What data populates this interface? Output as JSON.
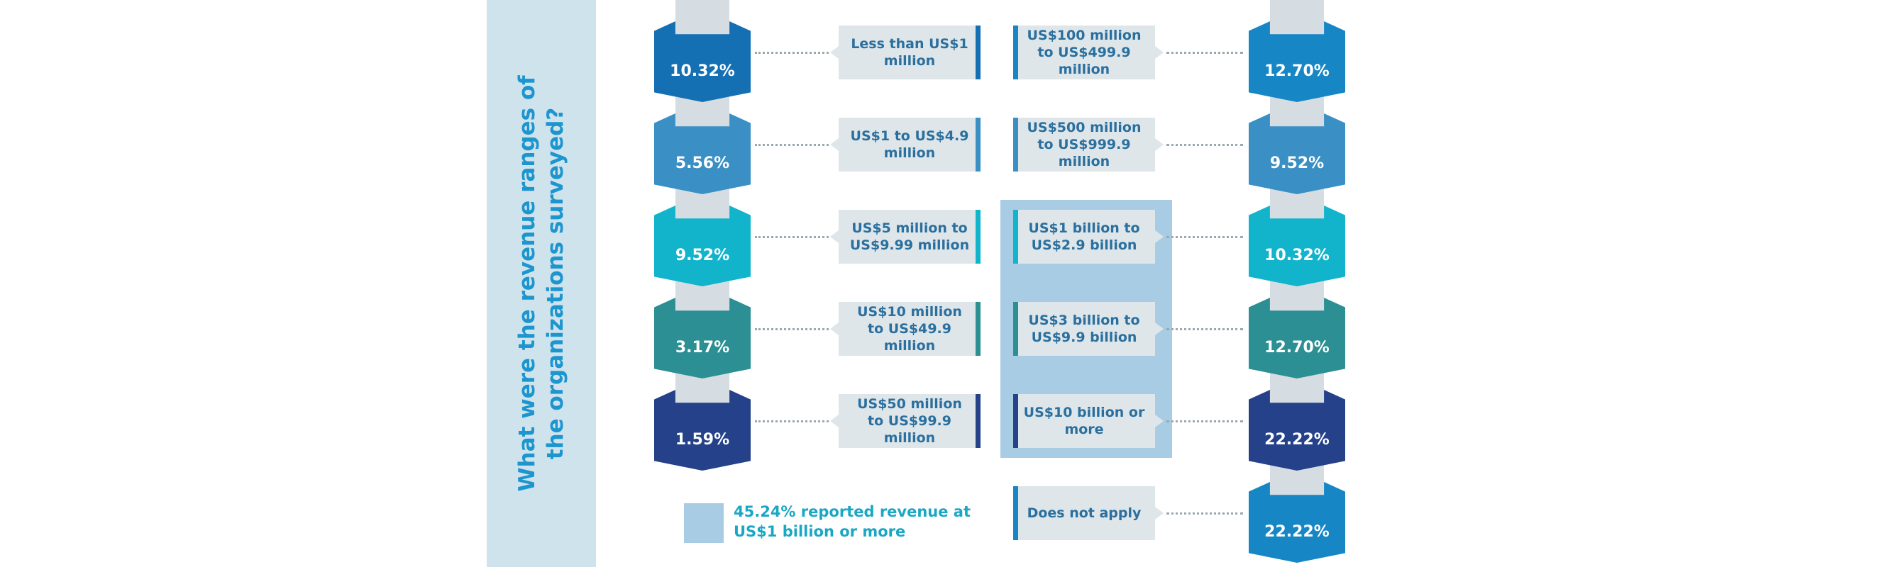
{
  "chart_data": {
    "type": "table",
    "title": "What were the revenue ranges of the organizations surveyed?",
    "left_series": [
      {
        "category": "Less than US$1 million",
        "value": 10.32,
        "label": "10.32%",
        "color": "#1570b3"
      },
      {
        "category": "US$1 to US$4.9 million",
        "value": 5.56,
        "label": "5.56%",
        "color": "#3a8fc4"
      },
      {
        "category": "US$5 million to US$9.99 million",
        "value": 9.52,
        "label": "9.52%",
        "color": "#12b4cc"
      },
      {
        "category": "US$10 million to US$49.9 million",
        "value": 3.17,
        "label": "3.17%",
        "color": "#2b8f93"
      },
      {
        "category": "US$50 million to US$99.9 million",
        "value": 1.59,
        "label": "1.59%",
        "color": "#24418a"
      }
    ],
    "right_series": [
      {
        "category": "US$100 million to US$499.9 million",
        "value": 12.7,
        "label": "12.70%",
        "color": "#1686c4"
      },
      {
        "category": "US$500 million to US$999.9 million",
        "value": 9.52,
        "label": "9.52%",
        "color": "#3a8fc4"
      },
      {
        "category": "US$1 billion to US$2.9 billion",
        "value": 10.32,
        "label": "10.32%",
        "color": "#12b4cc"
      },
      {
        "category": "US$3 billion to US$9.9 billion",
        "value": 12.7,
        "label": "12.70%",
        "color": "#2b8f93"
      },
      {
        "category": "US$10 billion or more",
        "value": 22.22,
        "label": "22.22%",
        "color": "#24418a"
      },
      {
        "category": "Does not apply",
        "value": 22.22,
        "label": "22.22%",
        "color": "#1686c4"
      }
    ],
    "legend": {
      "text": "45.24% reported revenue at US$1 billion or more",
      "color": "#a8cce3"
    }
  },
  "colors": {
    "sidebar_bg": "#cfe3ed",
    "title_text": "#1d95cf",
    "label_box_bg": "#dee6ea",
    "label_text": "#2a6f9e",
    "highlight_box": "#a8cce3",
    "stem": "#d6dde2"
  }
}
